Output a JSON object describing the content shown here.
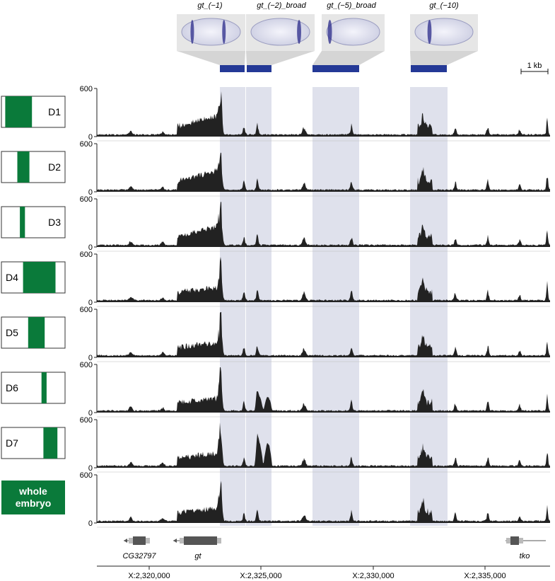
{
  "enhancers": [
    {
      "label": "gt_(−1)"
    },
    {
      "label": "gt_(−2)_broad"
    },
    {
      "label": "gt_(−5)_broad"
    },
    {
      "label": "gt_(−10)"
    }
  ],
  "scale_bar": "1 kb",
  "y_max_label": "600",
  "y_min_label": "0",
  "tracks": [
    {
      "label": "D1",
      "domain": [
        0.06,
        0.48
      ],
      "label_side": "right"
    },
    {
      "label": "D2",
      "domain": [
        0.25,
        0.44
      ],
      "label_side": "right"
    },
    {
      "label": "D3",
      "domain": [
        0.29,
        0.37
      ],
      "label_side": "right"
    },
    {
      "label": "D4",
      "domain": [
        0.34,
        0.85
      ],
      "label_side": "left"
    },
    {
      "label": "D5",
      "domain": [
        0.42,
        0.68
      ],
      "label_side": "left"
    },
    {
      "label": "D6",
      "domain": [
        0.63,
        0.71
      ],
      "label_side": "left"
    },
    {
      "label": "D7",
      "domain": [
        0.66,
        0.88
      ],
      "label_side": "left"
    },
    {
      "label": "whole embryo",
      "label_lines": [
        "whole",
        "embryo"
      ],
      "whole": true
    }
  ],
  "genes": [
    {
      "name": "CG32797"
    },
    {
      "name": "gt"
    },
    {
      "name": "tko"
    }
  ],
  "x_axis_ticks": [
    "X:2,320,000",
    "X:2,325,000",
    "X:2,330,000",
    "X:2,335,000"
  ],
  "colors": {
    "domain_green": "#0a7a3a",
    "signal": "#222222",
    "highlight": "#dfe1ec",
    "enhancer_bar": "#243996",
    "embryo_stain": "#2a2a8a"
  }
}
